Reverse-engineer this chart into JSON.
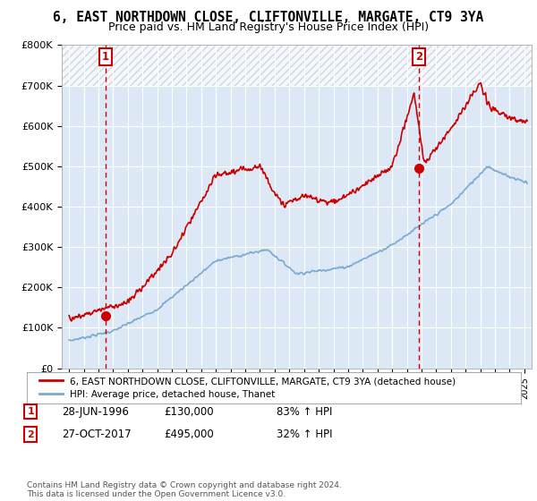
{
  "title": "6, EAST NORTHDOWN CLOSE, CLIFTONVILLE, MARGATE, CT9 3YA",
  "subtitle": "Price paid vs. HM Land Registry's House Price Index (HPI)",
  "title_fontsize": 10.5,
  "subtitle_fontsize": 9,
  "ylim": [
    0,
    800000
  ],
  "yticks": [
    0,
    100000,
    200000,
    300000,
    400000,
    500000,
    600000,
    700000,
    800000
  ],
  "ytick_labels": [
    "£0",
    "£100K",
    "£200K",
    "£300K",
    "£400K",
    "£500K",
    "£600K",
    "£700K",
    "£800K"
  ],
  "xlim_start": 1993.5,
  "xlim_end": 2025.5,
  "sale1_year": 1996.49,
  "sale1_price": 130000,
  "sale1_label": "1",
  "sale1_date": "28-JUN-1996",
  "sale1_amount": "£130,000",
  "sale1_hpi": "83% ↑ HPI",
  "sale2_year": 2017.82,
  "sale2_price": 495000,
  "sale2_label": "2",
  "sale2_date": "27-OCT-2017",
  "sale2_amount": "£495,000",
  "sale2_hpi": "32% ↑ HPI",
  "red_line_color": "#cc0000",
  "blue_line_color": "#7aaad0",
  "plot_bg_color": "#dce8f5",
  "hatch_color": "#c0c8d0",
  "vline_color": "#cc0000",
  "legend1_text": "6, EAST NORTHDOWN CLOSE, CLIFTONVILLE, MARGATE, CT9 3YA (detached house)",
  "legend2_text": "HPI: Average price, detached house, Thanet",
  "footer": "Contains HM Land Registry data © Crown copyright and database right 2024.\nThis data is licensed under the Open Government Licence v3.0.",
  "background_color": "#ffffff"
}
